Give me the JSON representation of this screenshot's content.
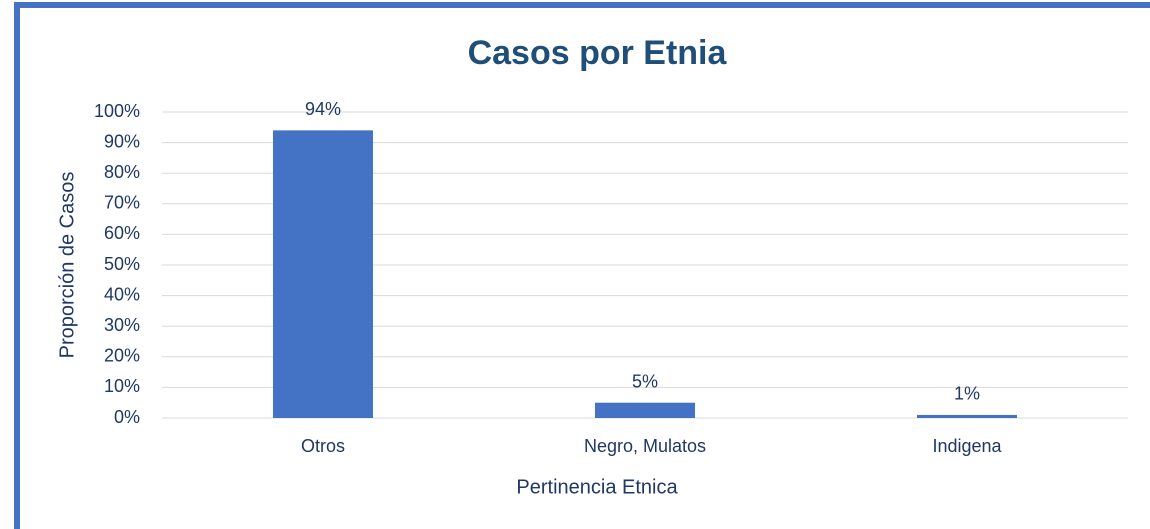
{
  "chart_data": {
    "type": "bar",
    "title": "Casos por Etnia",
    "x_label": "Pertinencia Etnica",
    "y_label": "Proporción de Casos",
    "categories": [
      "Otros",
      "Negro, Mulatos",
      "Indigena"
    ],
    "values": [
      94,
      5,
      1
    ],
    "value_labels": [
      "94%",
      "5%",
      "1%"
    ],
    "color": "#4472c4",
    "ylim": [
      0,
      100
    ],
    "yticks": [
      {
        "value": 0,
        "label": "0%"
      },
      {
        "value": 10,
        "label": "10%"
      },
      {
        "value": 20,
        "label": "20%"
      },
      {
        "value": 30,
        "label": "30%"
      },
      {
        "value": 40,
        "label": "40%"
      },
      {
        "value": 50,
        "label": "50%"
      },
      {
        "value": 60,
        "label": "60%"
      },
      {
        "value": 70,
        "label": "70%"
      },
      {
        "value": 80,
        "label": "80%"
      },
      {
        "value": 90,
        "label": "90%"
      },
      {
        "value": 100,
        "label": "100%"
      }
    ],
    "grid": true
  }
}
